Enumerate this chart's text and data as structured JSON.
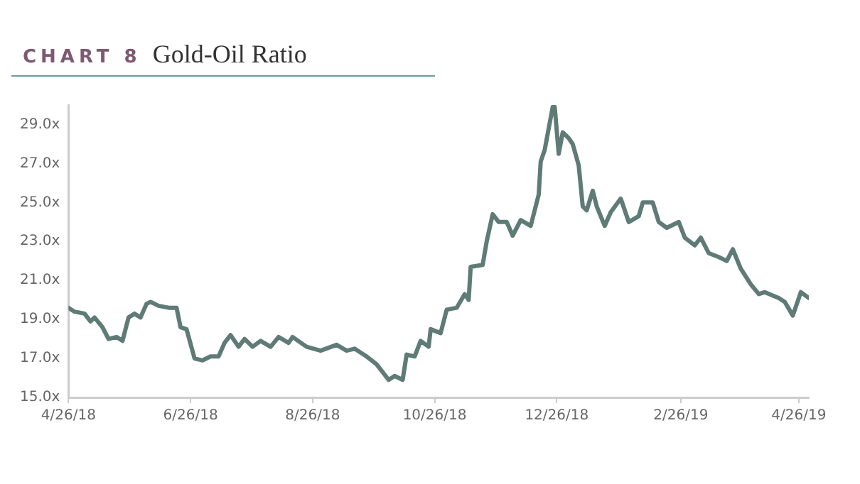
{
  "chart_data": {
    "type": "line",
    "title": "CHART 8",
    "subtitle": "Gold-Oil Ratio",
    "x": [
      "2018-04-26",
      "2018-04-29",
      "2018-05-04",
      "2018-05-07",
      "2018-05-09",
      "2018-05-13",
      "2018-05-16",
      "2018-05-20",
      "2018-05-23",
      "2018-05-26",
      "2018-05-29",
      "2018-06-01",
      "2018-06-04",
      "2018-06-06",
      "2018-06-10",
      "2018-06-15",
      "2018-06-19",
      "2018-06-21",
      "2018-06-24",
      "2018-06-28",
      "2018-07-02",
      "2018-07-06",
      "2018-07-10",
      "2018-07-13",
      "2018-07-16",
      "2018-07-20",
      "2018-07-23",
      "2018-07-27",
      "2018-07-31",
      "2018-08-05",
      "2018-08-09",
      "2018-08-14",
      "2018-08-16",
      "2018-08-23",
      "2018-08-30",
      "2018-09-07",
      "2018-09-12",
      "2018-09-16",
      "2018-09-22",
      "2018-09-27",
      "2018-10-03",
      "2018-10-06",
      "2018-10-10",
      "2018-10-12",
      "2018-10-16",
      "2018-10-19",
      "2018-10-23",
      "2018-10-24",
      "2018-10-29",
      "2018-11-01",
      "2018-11-06",
      "2018-11-10",
      "2018-11-12",
      "2018-11-13",
      "2018-11-19",
      "2018-11-21",
      "2018-11-24",
      "2018-11-27",
      "2018-12-01",
      "2018-12-04",
      "2018-12-08",
      "2018-12-13",
      "2018-12-15",
      "2018-12-17",
      "2018-12-18",
      "2018-12-20",
      "2018-12-24",
      "2018-12-25",
      "2018-12-27",
      "2018-12-29",
      "2019-01-01",
      "2019-01-03",
      "2019-01-06",
      "2019-01-08",
      "2019-01-10",
      "2019-01-13",
      "2019-01-15",
      "2019-01-19",
      "2019-01-22",
      "2019-01-27",
      "2019-01-31",
      "2019-02-05",
      "2019-02-07",
      "2019-02-12",
      "2019-02-15",
      "2019-02-19",
      "2019-02-25",
      "2019-02-28",
      "2019-03-05",
      "2019-03-08",
      "2019-03-12",
      "2019-03-17",
      "2019-03-21",
      "2019-03-24",
      "2019-03-28",
      "2019-04-02",
      "2019-04-06",
      "2019-04-09",
      "2019-04-16",
      "2019-04-19",
      "2019-04-23",
      "2019-04-27",
      "2019-05-01"
    ],
    "series": [
      {
        "color": "#5f7b76",
        "values": [
          19.6,
          19.4,
          19.3,
          18.9,
          19.1,
          18.6,
          18.0,
          18.1,
          17.9,
          19.1,
          19.3,
          19.1,
          19.8,
          19.9,
          19.7,
          19.6,
          19.6,
          18.6,
          18.5,
          17.0,
          16.9,
          17.1,
          17.1,
          17.8,
          18.2,
          17.6,
          18.0,
          17.6,
          17.9,
          17.6,
          18.1,
          17.8,
          18.1,
          17.6,
          17.4,
          17.7,
          17.4,
          17.5,
          17.1,
          16.7,
          15.9,
          16.1,
          15.9,
          17.2,
          17.1,
          17.9,
          17.6,
          18.5,
          18.3,
          19.5,
          19.6,
          20.3,
          20.0,
          21.7,
          21.8,
          23.0,
          24.4,
          24.0,
          24.0,
          23.3,
          24.1,
          23.8,
          24.6,
          25.4,
          27.1,
          27.7,
          29.9,
          29.9,
          27.5,
          28.6,
          28.3,
          28.0,
          26.9,
          24.8,
          24.6,
          25.6,
          24.8,
          23.8,
          24.5,
          25.2,
          24.0,
          24.3,
          25.0,
          25.0,
          24.0,
          23.7,
          24.0,
          23.2,
          22.8,
          23.2,
          22.4,
          22.2,
          22.0,
          22.6,
          21.6,
          20.8,
          20.3,
          20.4,
          20.1,
          19.9,
          19.2,
          20.4,
          20.1
        ]
      }
    ],
    "xlim": [
      "2018-04-26",
      "2019-05-01"
    ],
    "xticks": [
      {
        "value": "2018-04-26",
        "label": "4/26/18"
      },
      {
        "value": "2018-06-26",
        "label": "6/26/18"
      },
      {
        "value": "2018-08-26",
        "label": "8/26/18"
      },
      {
        "value": "2018-10-26",
        "label": "10/26/18"
      },
      {
        "value": "2018-12-26",
        "label": "12/26/18"
      },
      {
        "value": "2019-02-26",
        "label": "2/26/19"
      },
      {
        "value": "2019-04-26",
        "label": "4/26/19"
      }
    ],
    "ylim": [
      15,
      30
    ],
    "yticks": [
      {
        "value": 15,
        "label": "15.0x"
      },
      {
        "value": 17,
        "label": "17.0x"
      },
      {
        "value": 19,
        "label": "19.0x"
      },
      {
        "value": 21,
        "label": "21.0x"
      },
      {
        "value": 23,
        "label": "23.0x"
      },
      {
        "value": 25,
        "label": "25.0x"
      },
      {
        "value": 27,
        "label": "27.0x"
      },
      {
        "value": 29,
        "label": "29.0x"
      }
    ],
    "grid": false,
    "legend": false,
    "marker": "none",
    "line_style": "solid"
  }
}
